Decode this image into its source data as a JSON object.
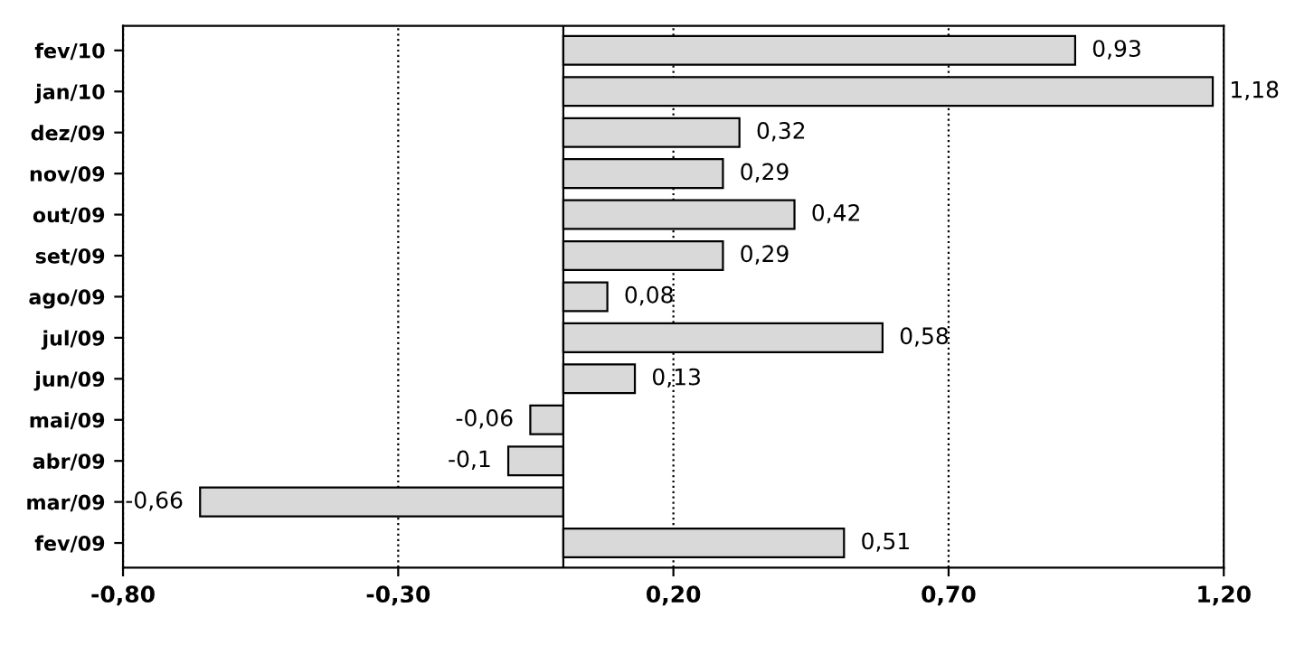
{
  "chart_data": {
    "type": "bar",
    "orientation": "horizontal",
    "categories": [
      "fev/10",
      "jan/10",
      "dez/09",
      "nov/09",
      "out/09",
      "set/09",
      "ago/09",
      "jul/09",
      "jun/09",
      "mai/09",
      "abr/09",
      "mar/09",
      "fev/09"
    ],
    "values": [
      0.93,
      1.18,
      0.32,
      0.29,
      0.42,
      0.29,
      0.08,
      0.58,
      0.13,
      -0.06,
      -0.1,
      -0.66,
      0.51
    ],
    "value_labels": [
      "0,93",
      "1,18",
      "0,32",
      "0,29",
      "0,42",
      "0,29",
      "0,08",
      "0,58",
      "0,13",
      "-0,06",
      "-0,1",
      "-0,66",
      "0,51"
    ],
    "color": "#d9d9d9",
    "xlim": [
      -0.8,
      1.2
    ],
    "xticks": [
      {
        "value": -0.8,
        "label": "-0,80"
      },
      {
        "value": -0.3,
        "label": "-0,30"
      },
      {
        "value": 0.2,
        "label": "0,20"
      },
      {
        "value": 0.7,
        "label": "0,70"
      },
      {
        "value": 1.2,
        "label": "1,20"
      }
    ],
    "grid": "x"
  }
}
